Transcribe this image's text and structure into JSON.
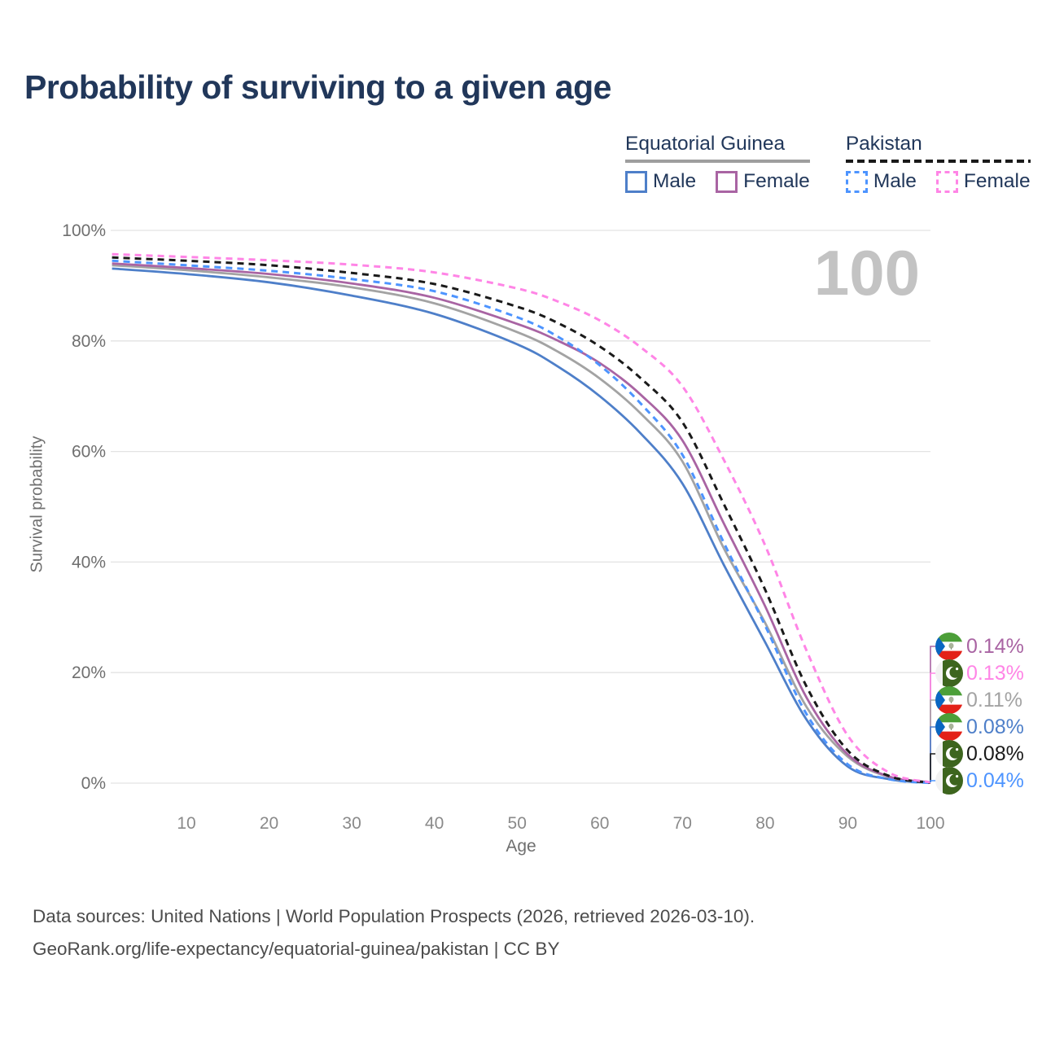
{
  "title": "Probability of surviving to a given age",
  "hover": {
    "age_label": "100"
  },
  "legend": {
    "groups": [
      {
        "label": "Equatorial Guinea",
        "line_color": "#9e9e9e",
        "line_dashed": false,
        "items": [
          {
            "label": "Male",
            "color": "#4e7fc9",
            "dashed": false
          },
          {
            "label": "Female",
            "color": "#a964a3",
            "dashed": false
          }
        ]
      },
      {
        "label": "Pakistan",
        "line_color": "#1a1a1a",
        "line_dashed": true,
        "items": [
          {
            "label": "Male",
            "color": "#4d94ff",
            "dashed": true
          },
          {
            "label": "Female",
            "color": "#ff85e6",
            "dashed": true
          }
        ]
      }
    ]
  },
  "chart_data": {
    "type": "line",
    "title": "Probability of surviving to a given age",
    "xlabel": "Age",
    "ylabel": "Survival probability",
    "xlim": [
      0,
      100
    ],
    "ylim": [
      0,
      100
    ],
    "grid": "horizontal",
    "legend_position": "top-right",
    "x_ticks": [
      10,
      20,
      30,
      40,
      50,
      60,
      70,
      80,
      90,
      100
    ],
    "y_ticks": [
      0,
      20,
      40,
      60,
      80,
      100
    ],
    "y_tick_labels": [
      "0%",
      "20%",
      "40%",
      "60%",
      "80%",
      "100%"
    ],
    "ages": [
      1,
      10,
      20,
      30,
      40,
      50,
      55,
      60,
      65,
      70,
      75,
      80,
      85,
      90,
      95,
      100
    ],
    "series": [
      {
        "name": "Equatorial Guinea Male",
        "color": "#4e7fc9",
        "dashed": false,
        "values": [
          93.1,
          92.1,
          90.6,
          88.2,
          84.9,
          79.4,
          75.3,
          70.0,
          63.2,
          54.2,
          39.5,
          25.5,
          11.5,
          3.0,
          0.7,
          0.08
        ],
        "end_value_label": "0.08%"
      },
      {
        "name": "Equatorial Guinea All",
        "color": "#a3a3a3",
        "dashed": false,
        "values": [
          93.7,
          92.8,
          91.5,
          89.7,
          86.8,
          81.6,
          78.0,
          73.2,
          66.8,
          58.2,
          42.5,
          29.0,
          13.8,
          4.8,
          1.1,
          0.11
        ],
        "end_value_label": "0.11%"
      },
      {
        "name": "Equatorial Guinea Female",
        "color": "#a964a3",
        "dashed": false,
        "values": [
          94.0,
          93.2,
          92.1,
          90.4,
          87.8,
          83.1,
          80.0,
          76.0,
          70.2,
          62.0,
          47.0,
          32.0,
          15.5,
          5.2,
          1.2,
          0.14
        ],
        "end_value_label": "0.14%"
      },
      {
        "name": "Pakistan Male",
        "color": "#4d94ff",
        "dashed": true,
        "values": [
          94.5,
          93.7,
          92.7,
          91.2,
          89.0,
          84.3,
          80.7,
          75.6,
          68.6,
          59.4,
          43.5,
          28.5,
          12.5,
          3.4,
          0.7,
          0.04
        ],
        "end_value_label": "0.04%"
      },
      {
        "name": "Pakistan All",
        "color": "#1a1a1a",
        "dashed": true,
        "values": [
          95.1,
          94.5,
          93.7,
          92.3,
          90.3,
          86.2,
          83.2,
          79.0,
          73.2,
          65.3,
          50.5,
          35.0,
          17.5,
          5.9,
          1.3,
          0.08
        ],
        "end_value_label": "0.08%"
      },
      {
        "name": "Pakistan Female",
        "color": "#ff85e6",
        "dashed": true,
        "values": [
          95.7,
          95.2,
          94.6,
          93.8,
          92.4,
          89.5,
          87.1,
          83.7,
          78.8,
          71.8,
          58.5,
          43.0,
          24.0,
          8.6,
          1.9,
          0.13
        ],
        "end_value_label": "0.13%"
      }
    ],
    "end_labels": [
      {
        "text": "0.14%",
        "color": "#a964a3",
        "flag": "equatorial-guinea"
      },
      {
        "text": "0.13%",
        "color": "#ff85e6",
        "flag": "pakistan"
      },
      {
        "text": "0.11%",
        "color": "#a3a3a3",
        "flag": "equatorial-guinea"
      },
      {
        "text": "0.08%",
        "color": "#4e7fc9",
        "flag": "equatorial-guinea"
      },
      {
        "text": "0.08%",
        "color": "#1a1a1a",
        "flag": "pakistan"
      },
      {
        "text": "0.04%",
        "color": "#4d94ff",
        "flag": "pakistan"
      }
    ]
  },
  "footer": {
    "line1": "Data sources: United Nations | World Population Prospects (2026, retrieved 2026-03-10).",
    "line2": "GeoRank.org/life-expectancy/equatorial-guinea/pakistan | CC BY"
  }
}
